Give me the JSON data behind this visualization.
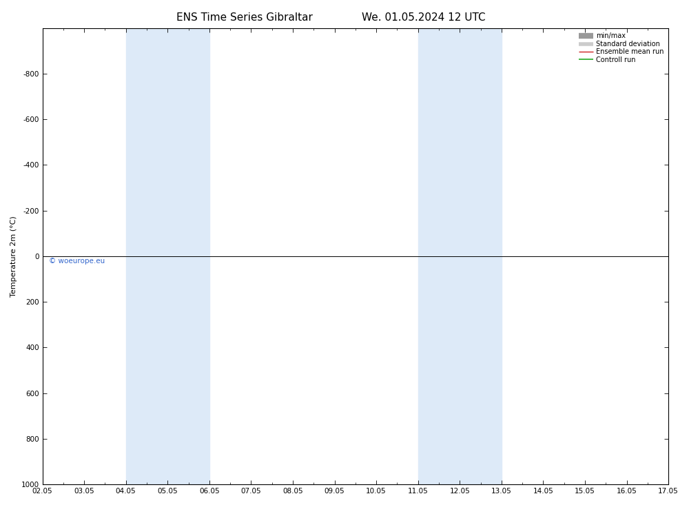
{
  "title_left": "ENS Time Series Gibraltar",
  "title_right": "We. 01.05.2024 12 UTC",
  "ylabel": "Temperature 2m (°C)",
  "ylim_bottom": 1000,
  "ylim_top": -1000,
  "yticks": [
    -800,
    -600,
    -400,
    -200,
    0,
    200,
    400,
    600,
    800,
    1000
  ],
  "xlim_left": 0,
  "xlim_right": 15,
  "xtick_labels": [
    "02.05",
    "03.05",
    "04.05",
    "05.05",
    "06.05",
    "07.05",
    "08.05",
    "09.05",
    "10.05",
    "11.05",
    "12.05",
    "13.05",
    "14.05",
    "15.05",
    "16.05",
    "17.05"
  ],
  "shaded_bands": [
    [
      2,
      3
    ],
    [
      3,
      4
    ],
    [
      9,
      10
    ],
    [
      10,
      11
    ]
  ],
  "shade_color": "#ddeaf8",
  "zero_line_y": 0,
  "watermark": "© woeurope.eu",
  "watermark_color": "#3366cc",
  "bg_color": "#ffffff",
  "plot_bg_color": "#ffffff",
  "legend_items": [
    {
      "label": "min/max",
      "color": "#999999",
      "lw": 6
    },
    {
      "label": "Standard deviation",
      "color": "#cccccc",
      "lw": 4
    },
    {
      "label": "Ensemble mean run",
      "color": "#cc2222",
      "lw": 1.0
    },
    {
      "label": "Controll run",
      "color": "#22aa22",
      "lw": 1.2
    }
  ],
  "spine_color": "#000000",
  "tick_color": "#000000",
  "title_fontsize": 11,
  "axis_label_fontsize": 8,
  "tick_fontsize": 7.5,
  "legend_fontsize": 7
}
